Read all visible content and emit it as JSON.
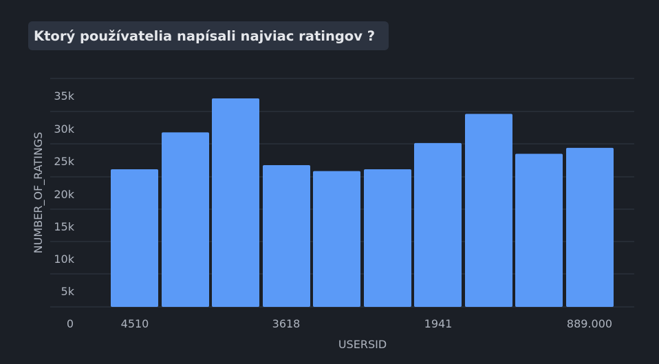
{
  "title": "Ktorý používatelia napísali najviac ratingov ?",
  "chart_data": {
    "type": "bar",
    "title": "Ktorý používatelia napísali najviac ratingov ?",
    "xlabel": "USERSID",
    "ylabel": "NUMBER_OF_RATINGS",
    "ylim": [
      0,
      35000
    ],
    "y_ticks": [
      "0",
      "5k",
      "10k",
      "15k",
      "20k",
      "25k",
      "30k",
      "35k"
    ],
    "x_tick_labels": [
      "4510",
      "3618",
      "1941",
      "889.000"
    ],
    "values": [
      23100,
      29300,
      35000,
      23800,
      22800,
      23100,
      27500,
      32400,
      25700,
      26700
    ],
    "grid": true,
    "legend": "none",
    "bar_color": "#5b9af7",
    "gridline_color": "#313844"
  }
}
